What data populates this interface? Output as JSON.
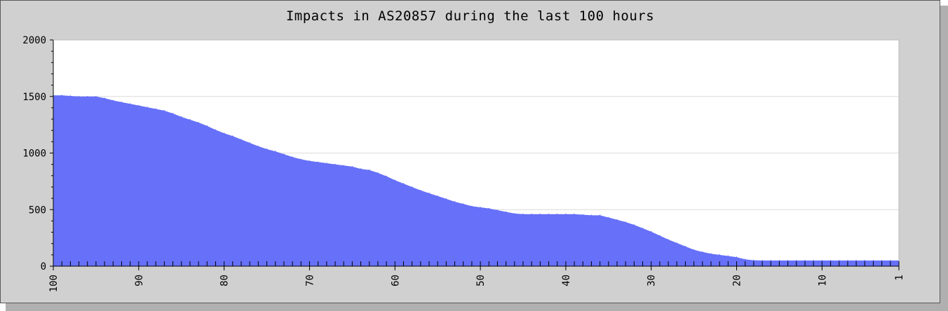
{
  "chart_data": {
    "type": "area",
    "title": "Impacts in AS20857 during the last 100 hours",
    "xlabel": "",
    "ylabel": "",
    "ylim": [
      0,
      2000
    ],
    "xlim": [
      100,
      1
    ],
    "x_tick_labels": [
      "100",
      "90",
      "80",
      "70",
      "60",
      "50",
      "40",
      "30",
      "20",
      "10",
      "1"
    ],
    "y_tick_labels": [
      "0",
      "500",
      "1000",
      "1500",
      "2000"
    ],
    "y_ticks": [
      0,
      500,
      1000,
      1500,
      2000
    ],
    "x_ticks": [
      100,
      90,
      80,
      70,
      60,
      50,
      40,
      30,
      20,
      10,
      1
    ],
    "grid": true,
    "fill_color": "#6670f8",
    "x": [
      100,
      99,
      98,
      97,
      96,
      95,
      94,
      93,
      92,
      91,
      90,
      89,
      88,
      87,
      86,
      85,
      84,
      83,
      82,
      81,
      80,
      79,
      78,
      77,
      76,
      75,
      74,
      73,
      72,
      71,
      70,
      69,
      68,
      67,
      66,
      65,
      64,
      63,
      62,
      61,
      60,
      59,
      58,
      57,
      56,
      55,
      54,
      53,
      52,
      51,
      50,
      49,
      48,
      47,
      46,
      45,
      44,
      43,
      42,
      41,
      40,
      39,
      38,
      37,
      36,
      35,
      34,
      33,
      32,
      31,
      30,
      29,
      28,
      27,
      26,
      25,
      24,
      23,
      22,
      21,
      20,
      19,
      18,
      17,
      16,
      15,
      14,
      13,
      12,
      11,
      10,
      9,
      8,
      7,
      6,
      5,
      4,
      3,
      2,
      1
    ],
    "values": [
      1510,
      1510,
      1505,
      1500,
      1500,
      1500,
      1485,
      1465,
      1450,
      1435,
      1420,
      1405,
      1390,
      1375,
      1350,
      1320,
      1295,
      1270,
      1240,
      1205,
      1175,
      1150,
      1120,
      1090,
      1060,
      1035,
      1015,
      990,
      965,
      945,
      930,
      920,
      910,
      900,
      890,
      880,
      860,
      850,
      825,
      795,
      760,
      730,
      700,
      670,
      645,
      620,
      595,
      570,
      550,
      530,
      520,
      510,
      495,
      480,
      465,
      460,
      460,
      460,
      460,
      460,
      460,
      460,
      455,
      450,
      450,
      430,
      410,
      390,
      365,
      335,
      305,
      270,
      235,
      205,
      175,
      145,
      125,
      110,
      100,
      90,
      80,
      60,
      52,
      50,
      50,
      50,
      50,
      50,
      50,
      50,
      50,
      50,
      50,
      50,
      50,
      50,
      50,
      50,
      50,
      50
    ]
  }
}
